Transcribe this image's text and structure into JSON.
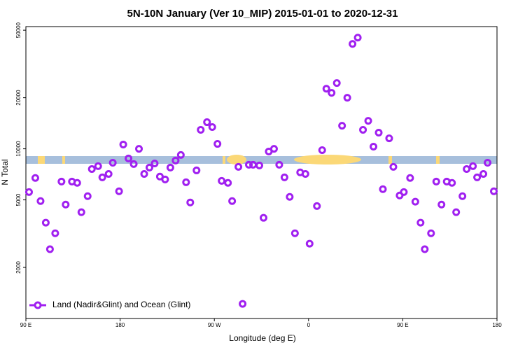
{
  "chart_data": {
    "type": "scatter",
    "title": "5N-10N January (Ver 10_MIP)   2015-01-01 to 2020-12-31",
    "xlabel": "Longitude (deg E)",
    "ylabel": "N Total",
    "log_y": true,
    "xlim": [
      90,
      540
    ],
    "xticks": [
      {
        "value": 90,
        "label": "90 E"
      },
      {
        "value": 180,
        "label": "180"
      },
      {
        "value": 270,
        "label": "90 W"
      },
      {
        "value": 360,
        "label": "0"
      },
      {
        "value": 450,
        "label": "90 E"
      },
      {
        "value": 540,
        "label": "180"
      }
    ],
    "ylim": [
      1000,
      52500
    ],
    "yticks": [
      2000,
      5000,
      10000,
      20000,
      50000
    ],
    "legend": "lower left",
    "series": [
      {
        "name": "Land (Nadir&Glint) and Ocean (Glint)",
        "color": "#a020f0",
        "x": [
          93,
          99,
          104,
          109,
          113,
          118,
          124,
          128,
          134,
          139,
          143,
          149,
          153,
          159,
          163,
          169,
          173,
          179,
          183,
          188,
          193,
          198,
          203,
          208,
          213,
          218,
          223,
          228,
          233,
          238,
          243,
          247,
          253,
          257,
          263,
          268,
          273,
          277,
          283,
          287,
          293,
          297,
          303,
          307,
          313,
          317,
          322,
          327,
          332,
          337,
          342,
          347,
          352,
          357,
          361,
          368,
          373,
          377,
          382,
          387,
          392,
          397,
          402,
          407,
          412,
          417,
          422,
          427,
          431,
          437,
          441,
          447,
          451,
          457,
          462,
          467,
          471,
          477,
          482,
          487,
          492,
          497,
          501,
          507,
          511,
          517,
          521,
          527,
          531,
          537
        ],
        "values": [
          5560,
          6730,
          4920,
          3670,
          2560,
          3180,
          6410,
          4690,
          6410,
          6300,
          4230,
          5260,
          7600,
          7900,
          6790,
          7110,
          8280,
          5620,
          10600,
          8770,
          8130,
          10000,
          7110,
          7750,
          8200,
          6860,
          6600,
          7750,
          8530,
          9200,
          6350,
          4830,
          7460,
          12940,
          14350,
          13430,
          10690,
          6470,
          6300,
          4920,
          7830,
          1220,
          8050,
          8050,
          7980,
          3920,
          9640,
          10000,
          8050,
          6790,
          5210,
          3180,
          7260,
          7110,
          2760,
          4600,
          9820,
          22600,
          21380,
          24400,
          13680,
          20000,
          41500,
          45200,
          12940,
          14620,
          10300,
          12450,
          5780,
          11530,
          7830,
          5310,
          5560,
          6730,
          4880,
          3670,
          2560,
          3180,
          6410,
          4690,
          6410,
          6300,
          4230,
          5260,
          7600,
          7900,
          6790,
          7110,
          8280,
          5620
        ]
      }
    ]
  }
}
